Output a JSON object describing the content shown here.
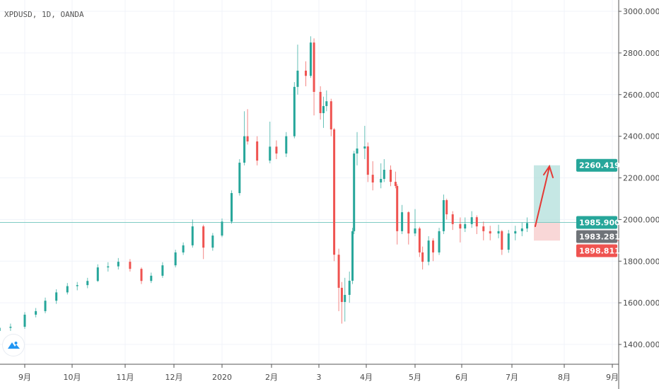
{
  "header": {
    "symbol_label": "XPDUSD, 1D, OANDA"
  },
  "colors": {
    "up": "#26a69a",
    "down": "#ef5350",
    "target_zone": "#b2dfdb",
    "stop_zone": "#f8d0d0",
    "current_line": "#80cbc4",
    "last_price_tag": "#6f7378",
    "arrow": "#e53935"
  },
  "chart_data": {
    "type": "candlestick",
    "title": "XPDUSD, 1D, OANDA",
    "ylim": [
      1300,
      3050
    ],
    "grid": true,
    "y_ticks": [
      "3000.000",
      "2800.000",
      "2600.000",
      "2400.000",
      "2200.000",
      "2000.000",
      "1800.000",
      "1600.000",
      "1400.000"
    ],
    "x_ticks": [
      {
        "label": "9月",
        "date": "2019-09-01"
      },
      {
        "label": "10月",
        "date": "2019-10-01"
      },
      {
        "label": "11月",
        "date": "2019-11-01"
      },
      {
        "label": "12月",
        "date": "2019-12-01"
      },
      {
        "label": "2020",
        "date": "2020-01-01"
      },
      {
        "label": "2月",
        "date": "2020-02-01"
      },
      {
        "label": "3",
        "date": "2020-03-01"
      },
      {
        "label": "4月",
        "date": "2020-04-01"
      },
      {
        "label": "5月",
        "date": "2020-05-01"
      },
      {
        "label": "6月",
        "date": "2020-06-01"
      },
      {
        "label": "7月",
        "date": "2020-07-01"
      },
      {
        "label": "8月",
        "date": "2020-08-01"
      },
      {
        "label": "9月",
        "date": "2020-09-01"
      }
    ],
    "candles_columns": [
      "date",
      "open",
      "high",
      "low",
      "close"
    ],
    "candles": [
      [
        "2019-08-16",
        1465,
        1495,
        1450,
        1480
      ],
      [
        "2019-08-23",
        1480,
        1500,
        1465,
        1485
      ],
      [
        "2019-09-01",
        1485,
        1555,
        1475,
        1543
      ],
      [
        "2019-09-08",
        1543,
        1575,
        1530,
        1560
      ],
      [
        "2019-09-14",
        1560,
        1625,
        1550,
        1610
      ],
      [
        "2019-09-21",
        1610,
        1665,
        1595,
        1650
      ],
      [
        "2019-09-28",
        1650,
        1695,
        1640,
        1680
      ],
      [
        "2019-10-04",
        1680,
        1700,
        1660,
        1685
      ],
      [
        "2019-10-10",
        1685,
        1720,
        1670,
        1705
      ],
      [
        "2019-10-16",
        1705,
        1785,
        1700,
        1770
      ],
      [
        "2019-10-22",
        1770,
        1795,
        1750,
        1775
      ],
      [
        "2019-10-28",
        1775,
        1815,
        1760,
        1797
      ],
      [
        "2019-11-04",
        1797,
        1810,
        1750,
        1763
      ],
      [
        "2019-11-11",
        1763,
        1770,
        1690,
        1705
      ],
      [
        "2019-11-17",
        1705,
        1745,
        1695,
        1730
      ],
      [
        "2019-11-24",
        1730,
        1795,
        1720,
        1780
      ],
      [
        "2019-12-02",
        1780,
        1855,
        1770,
        1842
      ],
      [
        "2019-12-07",
        1842,
        1890,
        1830,
        1876
      ],
      [
        "2019-12-13",
        1876,
        2000,
        1865,
        1967
      ],
      [
        "2019-12-20",
        1967,
        1975,
        1810,
        1865
      ],
      [
        "2019-12-26",
        1865,
        1935,
        1850,
        1923
      ],
      [
        "2020-01-01",
        1923,
        2005,
        1915,
        1990
      ],
      [
        "2020-01-07",
        1990,
        2140,
        1980,
        2127
      ],
      [
        "2020-01-12",
        2127,
        2290,
        2115,
        2273
      ],
      [
        "2020-01-15",
        2273,
        2520,
        2260,
        2400
      ],
      [
        "2020-01-17",
        2400,
        2530,
        2360,
        2375
      ],
      [
        "2020-01-23",
        2375,
        2400,
        2260,
        2283
      ],
      [
        "2020-01-31",
        2283,
        2470,
        2270,
        2350
      ],
      [
        "2020-02-04",
        2350,
        2380,
        2290,
        2317
      ],
      [
        "2020-02-10",
        2317,
        2420,
        2300,
        2400
      ],
      [
        "2020-02-15",
        2400,
        2660,
        2390,
        2637
      ],
      [
        "2020-02-17",
        2637,
        2840,
        2600,
        2715
      ],
      [
        "2020-02-22",
        2715,
        2760,
        2640,
        2690
      ],
      [
        "2020-02-25",
        2690,
        2880,
        2680,
        2850
      ],
      [
        "2020-02-27",
        2850,
        2870,
        2500,
        2613
      ],
      [
        "2020-03-02",
        2613,
        2640,
        2480,
        2511
      ],
      [
        "2020-03-04",
        2511,
        2590,
        2440,
        2545
      ],
      [
        "2020-03-06",
        2545,
        2620,
        2520,
        2568
      ],
      [
        "2020-03-09",
        2568,
        2580,
        2400,
        2433
      ],
      [
        "2020-03-11",
        2433,
        2440,
        1800,
        1831
      ],
      [
        "2020-03-14",
        1831,
        1860,
        1560,
        1672
      ],
      [
        "2020-03-16",
        1672,
        1700,
        1500,
        1604
      ],
      [
        "2020-03-18",
        1604,
        1720,
        1510,
        1638
      ],
      [
        "2020-03-21",
        1638,
        1750,
        1600,
        1706
      ],
      [
        "2020-03-23",
        1706,
        1960,
        1690,
        1944
      ],
      [
        "2020-03-24",
        1944,
        2330,
        1930,
        2317
      ],
      [
        "2020-03-26",
        2317,
        2420,
        2260,
        2341
      ],
      [
        "2020-03-31",
        2341,
        2450,
        2290,
        2351
      ],
      [
        "2020-04-02",
        2351,
        2370,
        2180,
        2215
      ],
      [
        "2020-04-05",
        2215,
        2280,
        2140,
        2178
      ],
      [
        "2020-04-10",
        2178,
        2270,
        2150,
        2195
      ],
      [
        "2020-04-12",
        2195,
        2290,
        2180,
        2239
      ],
      [
        "2020-04-16",
        2239,
        2260,
        2160,
        2181
      ],
      [
        "2020-04-19",
        2181,
        2230,
        2150,
        2161
      ],
      [
        "2020-04-20",
        2161,
        2170,
        1880,
        1944
      ],
      [
        "2020-04-23",
        1944,
        2070,
        1930,
        2035
      ],
      [
        "2020-04-27",
        2035,
        2040,
        1880,
        1933
      ],
      [
        "2020-05-01",
        1933,
        2050,
        1920,
        1957
      ],
      [
        "2020-05-04",
        1957,
        1965,
        1820,
        1842
      ],
      [
        "2020-05-06",
        1842,
        1870,
        1760,
        1797
      ],
      [
        "2020-05-10",
        1797,
        1920,
        1780,
        1899
      ],
      [
        "2020-05-13",
        1899,
        1910,
        1800,
        1842
      ],
      [
        "2020-05-17",
        1842,
        1960,
        1830,
        1944
      ],
      [
        "2020-05-20",
        1944,
        2120,
        1930,
        2093
      ],
      [
        "2020-05-22",
        2093,
        2100,
        2000,
        2025
      ],
      [
        "2020-05-26",
        2025,
        2040,
        1950,
        1978
      ],
      [
        "2020-05-31",
        1978,
        2010,
        1890,
        1957
      ],
      [
        "2020-06-03",
        1957,
        2010,
        1940,
        1978
      ],
      [
        "2020-06-07",
        1978,
        2040,
        1960,
        2011
      ],
      [
        "2020-06-10",
        2011,
        2020,
        1930,
        1967
      ],
      [
        "2020-06-14",
        1967,
        1990,
        1900,
        1944
      ],
      [
        "2020-06-18",
        1944,
        1970,
        1900,
        1933
      ],
      [
        "2020-06-23",
        1933,
        1975,
        1910,
        1944
      ],
      [
        "2020-06-25",
        1944,
        1950,
        1830,
        1855
      ],
      [
        "2020-06-29",
        1855,
        1950,
        1840,
        1933
      ],
      [
        "2020-07-03",
        1933,
        1970,
        1900,
        1944
      ],
      [
        "2020-07-07",
        1944,
        1985,
        1920,
        1957
      ],
      [
        "2020-07-10",
        1957,
        2010,
        1940,
        1983
      ]
    ],
    "current_price_line": 1985.9
  },
  "price_tags": {
    "target": "2260.419",
    "entry": "1985.900",
    "last": "1983.281",
    "stop": "1898.811"
  },
  "position_tool": {
    "type": "long",
    "entry": 1985.9,
    "target": 2260.419,
    "stop": 1898.811
  }
}
